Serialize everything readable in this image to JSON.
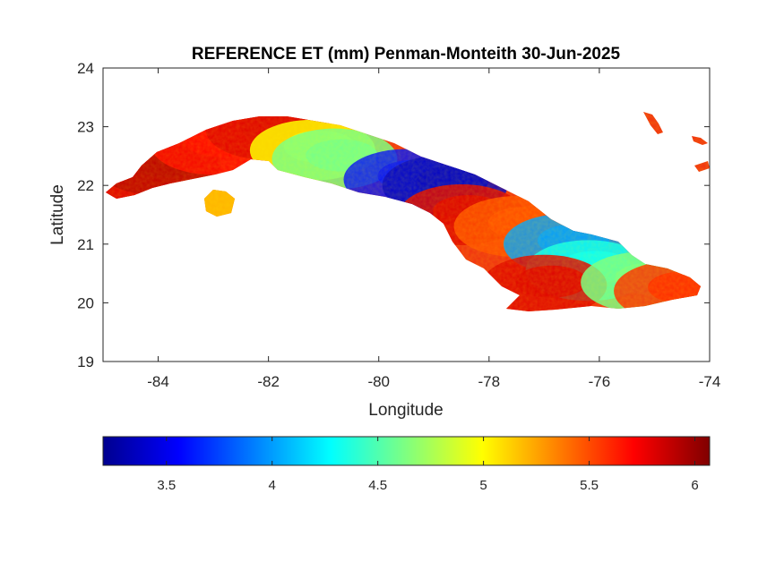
{
  "title": "REFERENCE ET (mm) Penman-Monteith 30-Jun-2025",
  "xlabel": "Longitude",
  "ylabel": "Latitude",
  "x_axis": {
    "min": -85,
    "max": -74,
    "ticks": [
      -84,
      -82,
      -80,
      -78,
      -76,
      -74
    ],
    "tick_labels": [
      "-84",
      "-82",
      "-80",
      "-78",
      "-76",
      "-74"
    ]
  },
  "y_axis": {
    "min": 19,
    "max": 24,
    "ticks": [
      19,
      20,
      21,
      22,
      23,
      24
    ],
    "tick_labels": [
      "19",
      "20",
      "21",
      "22",
      "23",
      "24"
    ]
  },
  "colorbar": {
    "colormap": "jet",
    "min": 3.2,
    "max": 6.07,
    "ticks": [
      3.5,
      4,
      4.5,
      5,
      5.5,
      6
    ],
    "tick_labels": [
      "3.5",
      "4",
      "4.5",
      "5",
      "5.5",
      "6"
    ],
    "placement": "bottom"
  },
  "map_data": {
    "region": "Cuba",
    "regions_et": [
      {
        "lon": -84.6,
        "lat": 21.95,
        "value": 5.8
      },
      {
        "lon": -84.0,
        "lat": 22.35,
        "value": 5.9
      },
      {
        "lon": -83.0,
        "lat": 22.7,
        "value": 5.7
      },
      {
        "lon": -82.8,
        "lat": 21.65,
        "value": 5.2
      },
      {
        "lon": -82.0,
        "lat": 22.95,
        "value": 5.8
      },
      {
        "lon": -81.2,
        "lat": 22.6,
        "value": 5.0
      },
      {
        "lon": -80.8,
        "lat": 22.45,
        "value": 4.6
      },
      {
        "lon": -79.5,
        "lat": 22.1,
        "value": 3.6
      },
      {
        "lon": -78.8,
        "lat": 22.0,
        "value": 3.4
      },
      {
        "lon": -78.5,
        "lat": 21.5,
        "value": 5.8
      },
      {
        "lon": -77.5,
        "lat": 21.3,
        "value": 5.5
      },
      {
        "lon": -76.6,
        "lat": 21.0,
        "value": 4.0
      },
      {
        "lon": -76.2,
        "lat": 20.55,
        "value": 4.3
      },
      {
        "lon": -77.0,
        "lat": 20.3,
        "value": 5.8
      },
      {
        "lon": -75.2,
        "lat": 20.35,
        "value": 4.6
      },
      {
        "lon": -74.6,
        "lat": 20.2,
        "value": 5.6
      }
    ]
  }
}
